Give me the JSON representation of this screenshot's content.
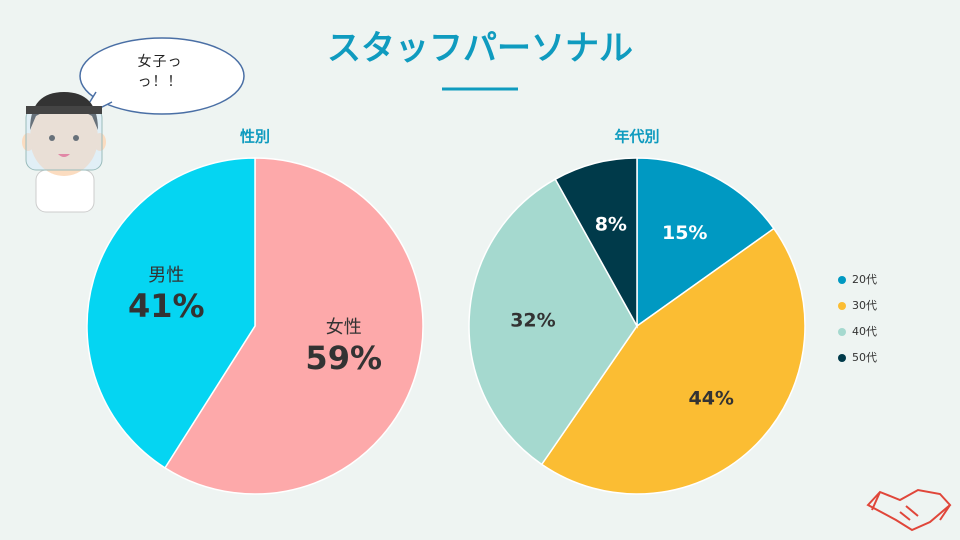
{
  "title": "スタッフパーソナル",
  "speech_bubble": "女子っっ！！",
  "chart_data": [
    {
      "type": "pie",
      "title": "性別",
      "categories": [
        "女性",
        "男性"
      ],
      "values": [
        59,
        41
      ],
      "value_labels": [
        "59%",
        "41%"
      ],
      "colors": [
        "#fda9aa",
        "#05d5f2"
      ]
    },
    {
      "type": "pie",
      "title": "年代別",
      "categories": [
        "20代",
        "30代",
        "40代",
        "50代"
      ],
      "values": [
        15,
        44,
        32,
        8
      ],
      "value_labels": [
        "15%",
        "44%",
        "32%",
        "8%"
      ],
      "colors": [
        "#0099c2",
        "#fbbd33",
        "#a5d9cf",
        "#003a4a"
      ],
      "legend": "right"
    }
  ]
}
